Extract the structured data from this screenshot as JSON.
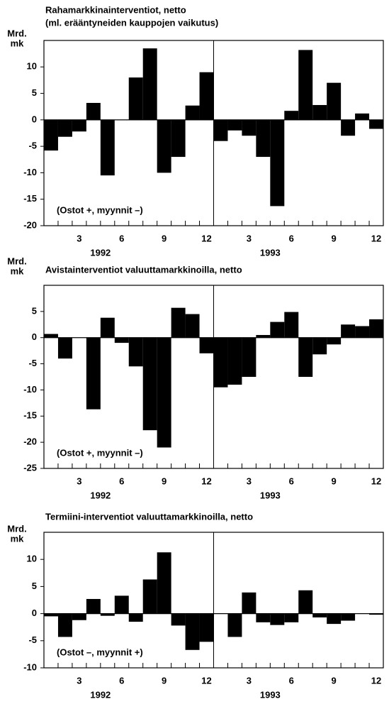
{
  "chart_data": [
    {
      "type": "bar",
      "title": "Rahamarkkinainterventiot, netto",
      "subtitle": "(ml. erääntyneiden kauppojen vaikutus)",
      "y_label": [
        "Mrd.",
        "mk"
      ],
      "annotation": "(Ostot +, myynnit –)",
      "color": "#000000",
      "categories": [
        null,
        null,
        3,
        null,
        null,
        6,
        null,
        null,
        9,
        null,
        null,
        12,
        null,
        null,
        3,
        null,
        null,
        6,
        null,
        null,
        9,
        null,
        null,
        12
      ],
      "x_groups": [
        "1992",
        "1993"
      ],
      "values": [
        -5.8,
        -3.2,
        -2.2,
        3.2,
        -10.5,
        0,
        8,
        13.5,
        -10,
        -7,
        2.7,
        9,
        -4,
        -2,
        -3,
        -7,
        -16.3,
        1.7,
        13.2,
        2.8,
        7,
        -3,
        1.2,
        -1.7
      ],
      "ylim": [
        -20,
        15
      ],
      "yticks": [
        -20,
        -15,
        -10,
        -5,
        0,
        5,
        10
      ]
    },
    {
      "type": "bar",
      "title": "Avistainterventiot valuuttamarkkinoilla, netto",
      "y_label": [
        "Mrd.",
        "mk"
      ],
      "annotation": "(Ostot +, myynnit –)",
      "color": "#000000",
      "categories": [
        null,
        null,
        3,
        null,
        null,
        6,
        null,
        null,
        9,
        null,
        null,
        12,
        null,
        null,
        3,
        null,
        null,
        6,
        null,
        null,
        9,
        null,
        null,
        12
      ],
      "x_groups": [
        "1992",
        "1993"
      ],
      "values": [
        0.7,
        -4,
        0,
        -13.7,
        3.8,
        -1,
        -5.5,
        -17.7,
        -21,
        5.7,
        4.5,
        -3,
        -9.5,
        -9,
        -7.5,
        0.5,
        3,
        4.9,
        -7.5,
        -3.2,
        -1.3,
        2.5,
        2.2,
        3.5
      ],
      "ylim": [
        -25,
        10
      ],
      "yticks": [
        -25,
        -20,
        -15,
        -10,
        -5,
        0,
        5
      ]
    },
    {
      "type": "bar",
      "title": "Termiini-interventiot valuuttamarkkinoilla, netto",
      "y_label": [
        "Mrd.",
        "mk"
      ],
      "annotation": "(Ostot –, myynnit +)",
      "color": "#000000",
      "categories": [
        null,
        null,
        3,
        null,
        null,
        6,
        null,
        null,
        9,
        null,
        null,
        12,
        null,
        null,
        3,
        null,
        null,
        6,
        null,
        null,
        9,
        null,
        null,
        12
      ],
      "x_groups": [
        "1992",
        "1993"
      ],
      "values": [
        -0.5,
        -4.3,
        -1.2,
        2.7,
        -0.4,
        3.3,
        -1.5,
        6.3,
        11.3,
        -2.2,
        -6.7,
        -5.2,
        0,
        -4.3,
        3.9,
        -1.6,
        -2.1,
        -1.6,
        4.3,
        -0.7,
        -1.9,
        -1.3,
        0,
        -0.2
      ],
      "ylim": [
        -10,
        15
      ],
      "yticks": [
        -10,
        -5,
        0,
        5,
        10
      ]
    }
  ]
}
